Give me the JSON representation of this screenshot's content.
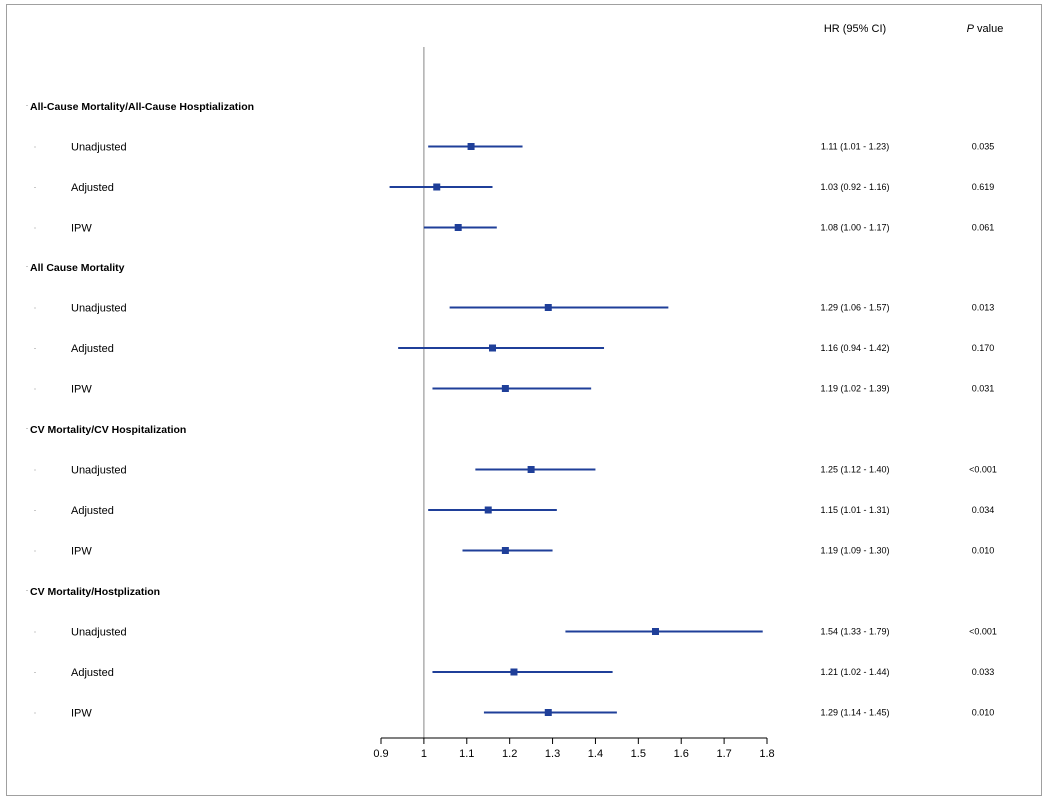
{
  "colors": {
    "marker": "#1f3f99",
    "refline": "#9a9a9a",
    "axis": "#000000"
  },
  "headers": {
    "hr": "HR (95% CI)",
    "p_italic": "P",
    "p_rest": " value"
  },
  "chart_data": {
    "type": "forest",
    "xlabel": "",
    "xlim": [
      0.9,
      1.8
    ],
    "reference": 1,
    "ticks": [
      "0.9",
      "1",
      "1.1",
      "1.2",
      "1.3",
      "1.4",
      "1.5",
      "1.6",
      "1.7",
      "1.8"
    ],
    "groups": [
      {
        "label": "All-Cause Mortality/All-Cause Hosptialization",
        "rows": [
          {
            "label": "Unadjusted",
            "hr": 1.11,
            "lo": 1.01,
            "hi": 1.23,
            "ci_text": "1.11 (1.01 - 1.23)",
            "p": "0.035"
          },
          {
            "label": "Adjusted",
            "hr": 1.03,
            "lo": 0.92,
            "hi": 1.16,
            "ci_text": "1.03 (0.92 - 1.16)",
            "p": "0.619"
          },
          {
            "label": "IPW",
            "hr": 1.08,
            "lo": 1.0,
            "hi": 1.17,
            "ci_text": "1.08 (1.00 - 1.17)",
            "p": "0.061"
          }
        ]
      },
      {
        "label": "All Cause Mortality",
        "rows": [
          {
            "label": "Unadjusted",
            "hr": 1.29,
            "lo": 1.06,
            "hi": 1.57,
            "ci_text": "1.29 (1.06 - 1.57)",
            "p": "0.013"
          },
          {
            "label": "Adjusted",
            "hr": 1.16,
            "lo": 0.94,
            "hi": 1.42,
            "ci_text": "1.16 (0.94 - 1.42)",
            "p": "0.170"
          },
          {
            "label": "IPW",
            "hr": 1.19,
            "lo": 1.02,
            "hi": 1.39,
            "ci_text": "1.19 (1.02 - 1.39)",
            "p": "0.031"
          }
        ]
      },
      {
        "label": "CV Mortality/CV Hospitalization",
        "rows": [
          {
            "label": "Unadjusted",
            "hr": 1.25,
            "lo": 1.12,
            "hi": 1.4,
            "ci_text": "1.25 (1.12 - 1.40)",
            "p": "<0.001"
          },
          {
            "label": "Adjusted",
            "hr": 1.15,
            "lo": 1.01,
            "hi": 1.31,
            "ci_text": "1.15 (1.01 - 1.31)",
            "p": "0.034"
          },
          {
            "label": "IPW",
            "hr": 1.19,
            "lo": 1.09,
            "hi": 1.3,
            "ci_text": "1.19 (1.09 - 1.30)",
            "p": "0.010"
          }
        ]
      },
      {
        "label": "CV Mortality/Hostplization",
        "rows": [
          {
            "label": "Unadjusted",
            "hr": 1.54,
            "lo": 1.33,
            "hi": 1.79,
            "ci_text": "1.54 (1.33 - 1.79)",
            "p": "<0.001"
          },
          {
            "label": "Adjusted",
            "hr": 1.21,
            "lo": 1.02,
            "hi": 1.44,
            "ci_text": "1.21 (1.02 - 1.44)",
            "p": "0.033"
          },
          {
            "label": "IPW",
            "hr": 1.29,
            "lo": 1.14,
            "hi": 1.45,
            "ci_text": "1.29 (1.14 - 1.45)",
            "p": "0.010"
          }
        ]
      }
    ]
  }
}
